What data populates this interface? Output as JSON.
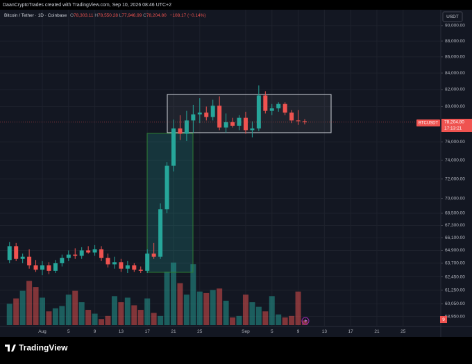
{
  "header": "DaanCryptoTrades created with TradingView.com, Sep 10, 2026 08:46 UTC+2",
  "legend": {
    "symbol": "Bitcoin / Tether · 1D · Coinbase",
    "ohlc_prefixes": [
      "O",
      "H",
      "L",
      "C"
    ],
    "ohlc_labels": [
      "78,303.11",
      "78,550.28",
      "77,946.99",
      "78,204.80"
    ],
    "change_label": "−108.17 (−0.14%)"
  },
  "currency_button": "USDT",
  "last_price_label": "78,204.80",
  "countdown": "17:13:21",
  "volume_label": "9",
  "footer": {
    "brand": "TradingView"
  },
  "chart_data": {
    "type": "candlestick",
    "log_scale": true,
    "grid": true,
    "up_color": "#26a69a",
    "down_color": "#ef5350",
    "categories": [
      null,
      null,
      null,
      null,
      null,
      "Aug",
      null,
      null,
      null,
      "5",
      null,
      null,
      null,
      "9",
      null,
      null,
      null,
      "13",
      null,
      null,
      null,
      "17",
      null,
      null,
      null,
      "21",
      null,
      null,
      null,
      "25",
      null,
      null,
      null,
      null,
      null,
      null,
      "Sep",
      null,
      null,
      null,
      "5",
      null,
      null,
      null,
      "9",
      null,
      null,
      null,
      "13",
      null,
      null,
      null,
      "17",
      null,
      null,
      null,
      "21",
      null,
      null,
      null,
      "25",
      null,
      null,
      null,
      null,
      null
    ],
    "series": [
      {
        "name": "BTCUSDT",
        "open": [
          64000,
          65300,
          64100,
          64300,
          63500,
          63100,
          63500,
          63000,
          63700,
          64200,
          64500,
          64400,
          64900,
          64700,
          65000,
          64200,
          63600,
          63800,
          63200,
          63500,
          63100,
          63000,
          64600,
          64300,
          68900,
          73400,
          77500,
          76900,
          78400,
          79100,
          79300,
          78800,
          80100,
          77600,
          78200,
          77800,
          78700,
          77300,
          77500,
          81300,
          79500,
          79800,
          80300,
          79300,
          78400,
          78303.11,
          null,
          null,
          null,
          null,
          null,
          null,
          null,
          null,
          null,
          null,
          null,
          null,
          null,
          null,
          null,
          null,
          null,
          null,
          null,
          null
        ],
        "high": [
          65700,
          65600,
          64600,
          65000,
          64000,
          63900,
          63800,
          64000,
          64500,
          64900,
          65100,
          65200,
          65300,
          65400,
          65300,
          64600,
          64300,
          64100,
          63900,
          63700,
          63400,
          65000,
          65600,
          69500,
          73800,
          78500,
          79000,
          79500,
          80200,
          81000,
          80000,
          80800,
          81200,
          79200,
          78700,
          79000,
          79400,
          78300,
          82500,
          81800,
          80300,
          80500,
          80500,
          79600,
          79600,
          78550.28,
          null,
          null,
          null,
          null,
          null,
          null,
          null,
          null,
          null,
          null,
          null,
          null,
          null,
          null,
          null,
          null,
          null,
          null,
          null,
          null
        ],
        "low": [
          63700,
          63900,
          63700,
          63200,
          62900,
          62600,
          62700,
          62800,
          63400,
          63900,
          64100,
          64100,
          64600,
          64400,
          63900,
          63300,
          63200,
          62900,
          62800,
          62900,
          62800,
          62800,
          64100,
          64100,
          68500,
          72800,
          76200,
          76100,
          77000,
          78100,
          78400,
          78400,
          77300,
          77000,
          77600,
          77300,
          76900,
          76500,
          77200,
          79200,
          79000,
          79400,
          79000,
          78100,
          77900,
          77946.99,
          null,
          null,
          null,
          null,
          null,
          null,
          null,
          null,
          null,
          null,
          null,
          null,
          null,
          null,
          null,
          null,
          null,
          null,
          null,
          null
        ],
        "close": [
          65300,
          64100,
          64300,
          63500,
          63100,
          63500,
          63000,
          63700,
          64200,
          64500,
          64400,
          64900,
          64700,
          65000,
          64200,
          63600,
          63800,
          63200,
          63500,
          63100,
          63000,
          64600,
          64300,
          68900,
          73400,
          77500,
          76900,
          78400,
          79100,
          79300,
          78800,
          80100,
          77600,
          78200,
          77800,
          78700,
          77300,
          77500,
          81300,
          79500,
          79800,
          80300,
          79300,
          78400,
          78313,
          78204.8,
          null,
          null,
          null,
          null,
          null,
          null,
          null,
          null,
          null,
          null,
          null,
          null,
          null,
          null,
          null,
          null,
          null,
          null,
          null,
          null
        ],
        "volume": [
          28,
          35,
          45,
          58,
          50,
          36,
          18,
          22,
          25,
          40,
          45,
          30,
          20,
          15,
          8,
          12,
          38,
          30,
          36,
          26,
          20,
          35,
          16,
          12,
          70,
          82,
          55,
          40,
          80,
          44,
          42,
          46,
          48,
          32,
          10,
          12,
          40,
          30,
          24,
          18,
          38,
          14,
          10,
          12,
          44,
          6,
          null,
          null,
          null,
          null,
          null,
          null,
          null,
          null,
          null,
          null,
          null,
          null,
          null,
          null,
          null,
          null,
          null,
          null,
          null,
          null
        ]
      }
    ],
    "ylim": [
      58100,
      92100
    ],
    "yticks": [
      {
        "value": 90000,
        "label": "90,000.00"
      },
      {
        "value": 88000,
        "label": "88,000.00"
      },
      {
        "value": 86000,
        "label": "86,000.00"
      },
      {
        "value": 84000,
        "label": "84,000.00"
      },
      {
        "value": 82000,
        "label": "82,000.00"
      },
      {
        "value": 80000,
        "label": "80,000.00"
      },
      {
        "value": 76000,
        "label": "76,000.00"
      },
      {
        "value": 74000,
        "label": "74,000.00"
      },
      {
        "value": 72000,
        "label": "72,000.00"
      },
      {
        "value": 70000,
        "label": "70,000.00"
      },
      {
        "value": 68500,
        "label": "68,500.00"
      },
      {
        "value": 67300,
        "label": "67,300.00"
      },
      {
        "value": 66100,
        "label": "66,100.00"
      },
      {
        "value": 64900,
        "label": "64,900.00"
      },
      {
        "value": 63700,
        "label": "63,700.00"
      },
      {
        "value": 62450,
        "label": "62,450.00"
      },
      {
        "value": 61250,
        "label": "61,250.00"
      },
      {
        "value": 60050,
        "label": "60,050.00"
      },
      {
        "value": 58950,
        "label": "58,950.00"
      }
    ]
  }
}
